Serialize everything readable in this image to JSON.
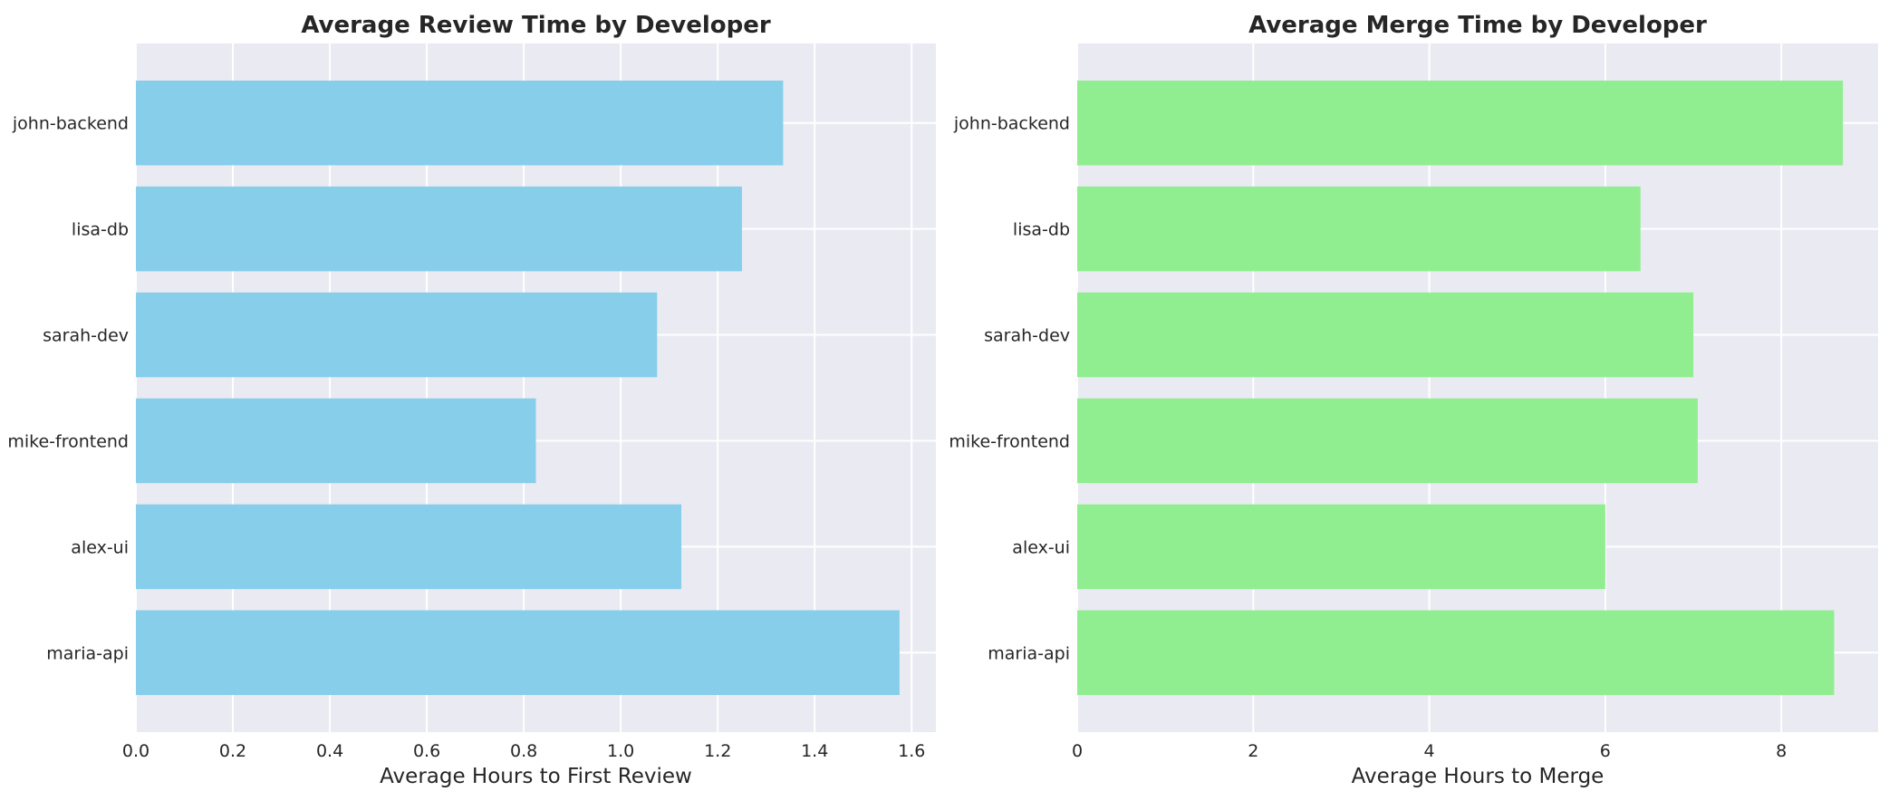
{
  "chart_data": [
    {
      "type": "bar",
      "orientation": "horizontal",
      "title": "Average Review Time by Developer",
      "xlabel": "Average Hours to First Review",
      "ylabel": "",
      "categories": [
        "john-backend",
        "lisa-db",
        "sarah-dev",
        "mike-frontend",
        "alex-ui",
        "maria-api"
      ],
      "values": [
        1.335,
        1.25,
        1.075,
        0.825,
        1.125,
        1.575
      ],
      "xlim": [
        0,
        1.65
      ],
      "xticks": [
        0,
        0.2,
        0.4,
        0.6,
        0.8,
        1.0,
        1.2,
        1.4,
        1.6
      ],
      "xtick_labels": [
        "0.0",
        "0.2",
        "0.4",
        "0.6",
        "0.8",
        "1.0",
        "1.2",
        "1.4",
        "1.6"
      ],
      "color": "#87ceeb",
      "grid": true
    },
    {
      "type": "bar",
      "orientation": "horizontal",
      "title": "Average Merge Time by Developer",
      "xlabel": "Average Hours to Merge",
      "ylabel": "",
      "categories": [
        "john-backend",
        "lisa-db",
        "sarah-dev",
        "mike-frontend",
        "alex-ui",
        "maria-api"
      ],
      "values": [
        8.7,
        6.4,
        7.0,
        7.05,
        6.0,
        8.6
      ],
      "xlim": [
        0,
        9.1
      ],
      "xticks": [
        0,
        2,
        4,
        6,
        8
      ],
      "xtick_labels": [
        "0",
        "2",
        "4",
        "6",
        "8"
      ],
      "color": "#90ee90",
      "grid": true
    }
  ]
}
